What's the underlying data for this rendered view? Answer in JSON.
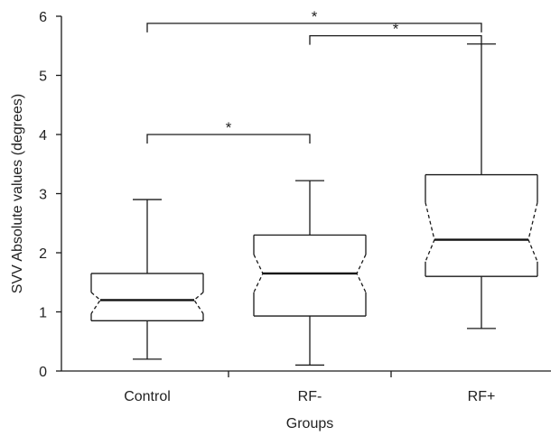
{
  "chart_data": {
    "type": "boxplot",
    "notched": true,
    "xlabel": "Groups",
    "ylabel": "SVV Absolute values (degrees)",
    "ylim": [
      0,
      6
    ],
    "yticks": [
      "0",
      "1",
      "2",
      "3",
      "4",
      "5",
      "6"
    ],
    "categories": [
      "Control",
      "RF-",
      "RF+"
    ],
    "boxes": [
      {
        "group": "Control",
        "whisker_low": 0.2,
        "q1": 0.85,
        "median": 1.2,
        "q3": 1.65,
        "whisker_high": 2.9,
        "notch_low": 0.97,
        "notch_high": 1.33
      },
      {
        "group": "RF-",
        "whisker_low": 0.1,
        "q1": 0.93,
        "median": 1.65,
        "q3": 2.3,
        "whisker_high": 3.22,
        "notch_low": 1.33,
        "notch_high": 1.97
      },
      {
        "group": "RF+",
        "whisker_low": 0.72,
        "q1": 1.6,
        "median": 2.22,
        "q3": 3.32,
        "whisker_high": 5.53,
        "notch_low": 1.85,
        "notch_high": 2.85
      }
    ],
    "annotations": [
      {
        "from": "Control",
        "to": "RF-",
        "level": 4.0,
        "label": "*"
      },
      {
        "from": "Control",
        "to": "RF+",
        "level": 5.88,
        "label": "*"
      },
      {
        "from": "RF-",
        "to": "RF+",
        "level": 5.67,
        "label": "*"
      }
    ]
  }
}
